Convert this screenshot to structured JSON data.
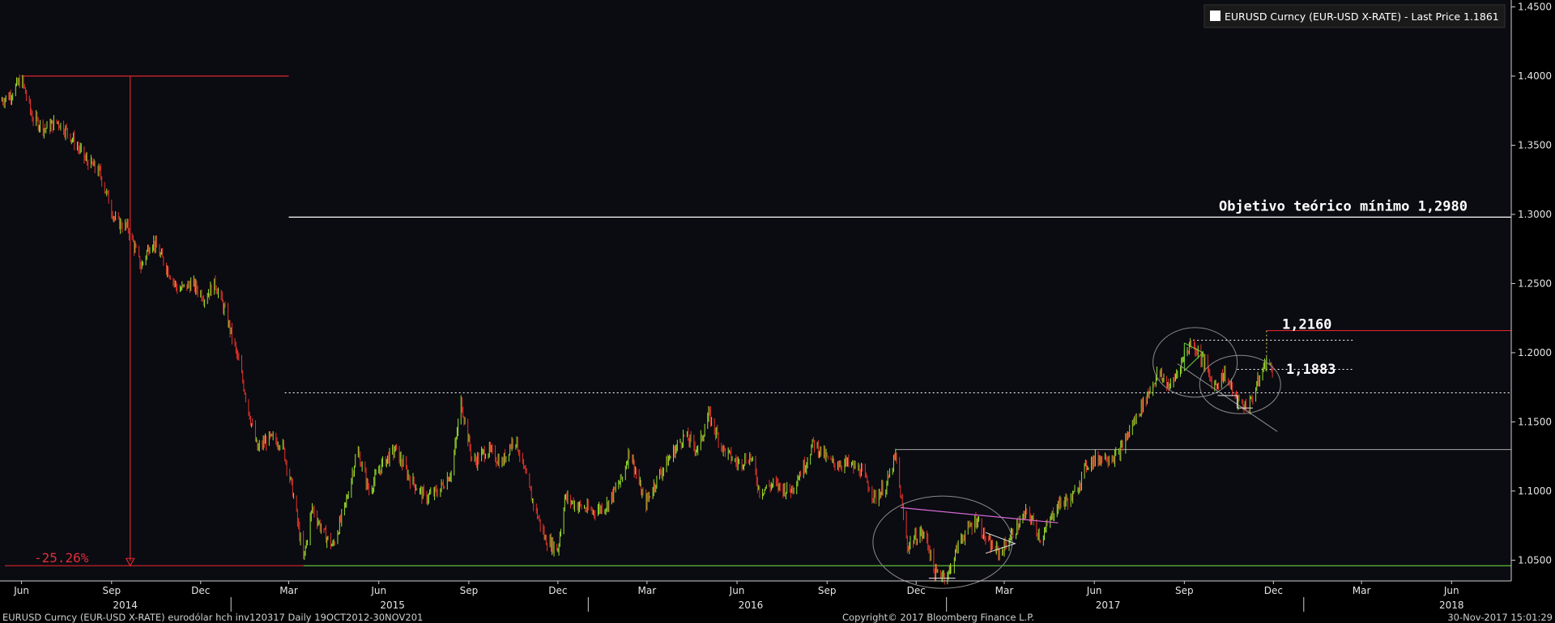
{
  "legend": {
    "label": "EURUSD Curncy (EUR-USD X-RATE) - Last Price 1.1861",
    "color": "#ffffff"
  },
  "footer": {
    "left": "EURUSD Curncy (EUR-USD X-RATE) eurodólar hch inv120317  Daily 19OCT2012-30NOV201",
    "center": "Copyright© 2017 Bloomberg Finance L.P.",
    "right": "30-Nov-2017 15:01:29"
  },
  "annotations": {
    "target": "Objetivo teórico mínimo 1,2980",
    "level_high": "1,2160",
    "level_mid": "1,1883",
    "drop_pct": "-25.26%"
  },
  "colors": {
    "up": "#9be22d",
    "down": "#e5342a",
    "red_line": "#d9262b",
    "green_line": "#6bd43a",
    "white_line": "#ffffff",
    "magenta_line": "#d86ad8",
    "axis": "#cfcfcf"
  },
  "chart_data": {
    "type": "line",
    "series_name": "EURUSD Curncy (EUR-USD X-RATE) - Last Price",
    "ylim": [
      1.035,
      1.455
    ],
    "xlim": [
      "2014-05-10",
      "2018-08-01"
    ],
    "y_ticks": [
      "1.0500",
      "1.1000",
      "1.1500",
      "1.2000",
      "1.2500",
      "1.3000",
      "1.3500",
      "1.4000",
      "1.4500"
    ],
    "x_ticks": [
      {
        "label": "Jun",
        "date": "2014-06-01"
      },
      {
        "label": "Sep",
        "date": "2014-09-01"
      },
      {
        "label": "Dec",
        "date": "2014-12-01"
      },
      {
        "label": "Mar",
        "date": "2015-03-01"
      },
      {
        "label": "Jun",
        "date": "2015-06-01"
      },
      {
        "label": "Sep",
        "date": "2015-09-01"
      },
      {
        "label": "Dec",
        "date": "2015-12-01"
      },
      {
        "label": "Mar",
        "date": "2016-03-01"
      },
      {
        "label": "Jun",
        "date": "2016-06-01"
      },
      {
        "label": "Sep",
        "date": "2016-09-01"
      },
      {
        "label": "Dec",
        "date": "2016-12-01"
      },
      {
        "label": "Mar",
        "date": "2017-03-01"
      },
      {
        "label": "Jun",
        "date": "2017-06-01"
      },
      {
        "label": "Sep",
        "date": "2017-09-01"
      },
      {
        "label": "Dec",
        "date": "2017-12-01"
      },
      {
        "label": "Mar",
        "date": "2018-03-01"
      },
      {
        "label": "Jun",
        "date": "2018-06-01"
      }
    ],
    "years": [
      {
        "label": "2014",
        "date": "2014-09-15"
      },
      {
        "label": "2015",
        "date": "2015-06-15"
      },
      {
        "label": "2016",
        "date": "2016-06-15"
      },
      {
        "label": "2017",
        "date": "2017-06-15"
      },
      {
        "label": "2018",
        "date": "2018-06-01"
      }
    ],
    "year_separators": [
      "2015-01-01",
      "2016-01-01",
      "2017-01-01",
      "2018-01-01"
    ],
    "price_path": [
      [
        "2014-05-10",
        1.382
      ],
      [
        "2014-05-20",
        1.386
      ],
      [
        "2014-06-01",
        1.398
      ],
      [
        "2014-06-12",
        1.37
      ],
      [
        "2014-06-25",
        1.362
      ],
      [
        "2014-07-08",
        1.367
      ],
      [
        "2014-07-20",
        1.358
      ],
      [
        "2014-08-05",
        1.34
      ],
      [
        "2014-08-20",
        1.33
      ],
      [
        "2014-09-05",
        1.295
      ],
      [
        "2014-09-18",
        1.29
      ],
      [
        "2014-10-01",
        1.262
      ],
      [
        "2014-10-12",
        1.282
      ],
      [
        "2014-10-25",
        1.265
      ],
      [
        "2014-11-08",
        1.245
      ],
      [
        "2014-11-22",
        1.25
      ],
      [
        "2014-12-05",
        1.24
      ],
      [
        "2014-12-16",
        1.25
      ],
      [
        "2014-12-28",
        1.225
      ],
      [
        "2015-01-10",
        1.19
      ],
      [
        "2015-01-20",
        1.155
      ],
      [
        "2015-01-28",
        1.13
      ],
      [
        "2015-02-08",
        1.138
      ],
      [
        "2015-02-22",
        1.135
      ],
      [
        "2015-03-05",
        1.1
      ],
      [
        "2015-03-16",
        1.05
      ],
      [
        "2015-03-25",
        1.088
      ],
      [
        "2015-04-05",
        1.07
      ],
      [
        "2015-04-15",
        1.06
      ],
      [
        "2015-04-28",
        1.09
      ],
      [
        "2015-05-10",
        1.13
      ],
      [
        "2015-05-22",
        1.1
      ],
      [
        "2015-06-05",
        1.12
      ],
      [
        "2015-06-18",
        1.13
      ],
      [
        "2015-07-02",
        1.11
      ],
      [
        "2015-07-18",
        1.095
      ],
      [
        "2015-08-01",
        1.1
      ],
      [
        "2015-08-15",
        1.115
      ],
      [
        "2015-08-24",
        1.165
      ],
      [
        "2015-09-05",
        1.12
      ],
      [
        "2015-09-20",
        1.13
      ],
      [
        "2015-10-05",
        1.12
      ],
      [
        "2015-10-18",
        1.14
      ],
      [
        "2015-11-02",
        1.1
      ],
      [
        "2015-11-18",
        1.065
      ],
      [
        "2015-12-01",
        1.058
      ],
      [
        "2015-12-08",
        1.095
      ],
      [
        "2015-12-20",
        1.09
      ],
      [
        "2016-01-05",
        1.085
      ],
      [
        "2016-01-20",
        1.09
      ],
      [
        "2016-02-05",
        1.11
      ],
      [
        "2016-02-12",
        1.13
      ],
      [
        "2016-02-28",
        1.09
      ],
      [
        "2016-03-12",
        1.11
      ],
      [
        "2016-03-25",
        1.125
      ],
      [
        "2016-04-08",
        1.14
      ],
      [
        "2016-04-22",
        1.13
      ],
      [
        "2016-05-03",
        1.155
      ],
      [
        "2016-05-18",
        1.13
      ],
      [
        "2016-06-01",
        1.12
      ],
      [
        "2016-06-15",
        1.125
      ],
      [
        "2016-06-24",
        1.1
      ],
      [
        "2016-07-08",
        1.105
      ],
      [
        "2016-07-25",
        1.1
      ],
      [
        "2016-08-10",
        1.12
      ],
      [
        "2016-08-18",
        1.135
      ],
      [
        "2016-09-05",
        1.12
      ],
      [
        "2016-09-20",
        1.12
      ],
      [
        "2016-10-05",
        1.115
      ],
      [
        "2016-10-20",
        1.095
      ],
      [
        "2016-11-01",
        1.105
      ],
      [
        "2016-11-10",
        1.125
      ],
      [
        "2016-11-22",
        1.06
      ],
      [
        "2016-12-05",
        1.07
      ],
      [
        "2016-12-12",
        1.065
      ],
      [
        "2016-12-20",
        1.04
      ],
      [
        "2017-01-03",
        1.04
      ],
      [
        "2017-01-15",
        1.065
      ],
      [
        "2017-02-01",
        1.08
      ],
      [
        "2017-02-12",
        1.062
      ],
      [
        "2017-02-25",
        1.055
      ],
      [
        "2017-03-10",
        1.07
      ],
      [
        "2017-03-25",
        1.085
      ],
      [
        "2017-04-08",
        1.065
      ],
      [
        "2017-04-24",
        1.09
      ],
      [
        "2017-05-10",
        1.095
      ],
      [
        "2017-05-25",
        1.12
      ],
      [
        "2017-06-10",
        1.125
      ],
      [
        "2017-06-25",
        1.125
      ],
      [
        "2017-07-08",
        1.145
      ],
      [
        "2017-07-22",
        1.165
      ],
      [
        "2017-08-05",
        1.185
      ],
      [
        "2017-08-18",
        1.175
      ],
      [
        "2017-08-30",
        1.195
      ],
      [
        "2017-09-08",
        1.208
      ],
      [
        "2017-09-20",
        1.195
      ],
      [
        "2017-10-01",
        1.175
      ],
      [
        "2017-10-12",
        1.185
      ],
      [
        "2017-10-25",
        1.165
      ],
      [
        "2017-11-05",
        1.16
      ],
      [
        "2017-11-15",
        1.178
      ],
      [
        "2017-11-24",
        1.195
      ],
      [
        "2017-11-30",
        1.1861
      ]
    ],
    "reference_lines": [
      {
        "kind": "red",
        "y": 1.4,
        "from": "2014-06-01",
        "to": "2015-03-01"
      },
      {
        "kind": "green",
        "y": 1.046,
        "from": "2015-03-16",
        "to": "2018-08-01"
      },
      {
        "kind": "red",
        "y": 1.046,
        "from": "2014-05-15",
        "to": "2015-03-16"
      },
      {
        "kind": "white",
        "y": 1.298,
        "from": "2015-03-01",
        "to": "2018-08-01"
      },
      {
        "kind": "white_dotted",
        "y": 1.171,
        "from": "2015-02-25",
        "to": "2018-08-01"
      },
      {
        "kind": "white_thin",
        "y": 1.13,
        "from": "2016-11-10",
        "to": "2018-08-01"
      },
      {
        "kind": "red",
        "y": 1.216,
        "from": "2017-11-24",
        "to": "2018-08-01"
      },
      {
        "kind": "white_dotted",
        "y": 1.209,
        "from": "2017-09-10",
        "to": "2018-02-20"
      },
      {
        "kind": "white_dotted",
        "y": 1.188,
        "from": "2017-10-25",
        "to": "2018-02-20"
      }
    ],
    "drop_arrow": {
      "date": "2014-09-20",
      "from": 1.4,
      "to": 1.046
    },
    "annotation_values": {
      "target": 1.298,
      "level_high": 1.216,
      "level_mid": 1.1883,
      "drop_pct": -25.26
    }
  }
}
